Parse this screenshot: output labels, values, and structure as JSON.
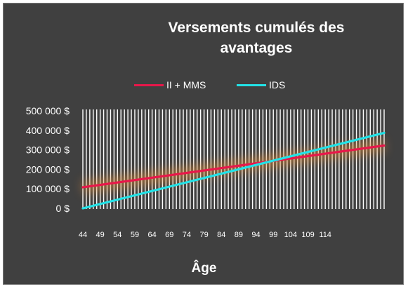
{
  "chart_data": {
    "type": "line",
    "title": "Versements cumulés des avantages",
    "xlabel": "Âge",
    "ylabel": "",
    "ylim": [
      0,
      500000
    ],
    "y_ticks": [
      "0 $",
      "100 000 $",
      "200 000 $",
      "300 000 $",
      "400 000 $",
      "500 000 $"
    ],
    "x_ticks": [
      "44",
      "49",
      "54",
      "59",
      "64",
      "69",
      "74",
      "79",
      "84",
      "89",
      "94",
      "99",
      "104",
      "109",
      "114"
    ],
    "x_range": [
      44,
      131
    ],
    "grid": "vertical",
    "legend_position": "top",
    "background_color": "#404040",
    "series": [
      {
        "name": "II + MMS",
        "color": "#e8174a",
        "x": [
          44,
          131
        ],
        "values": [
          108000,
          322000
        ]
      },
      {
        "name": "IDS",
        "color": "#22e3e8",
        "x": [
          44,
          131
        ],
        "values": [
          0,
          387000
        ]
      }
    ]
  }
}
